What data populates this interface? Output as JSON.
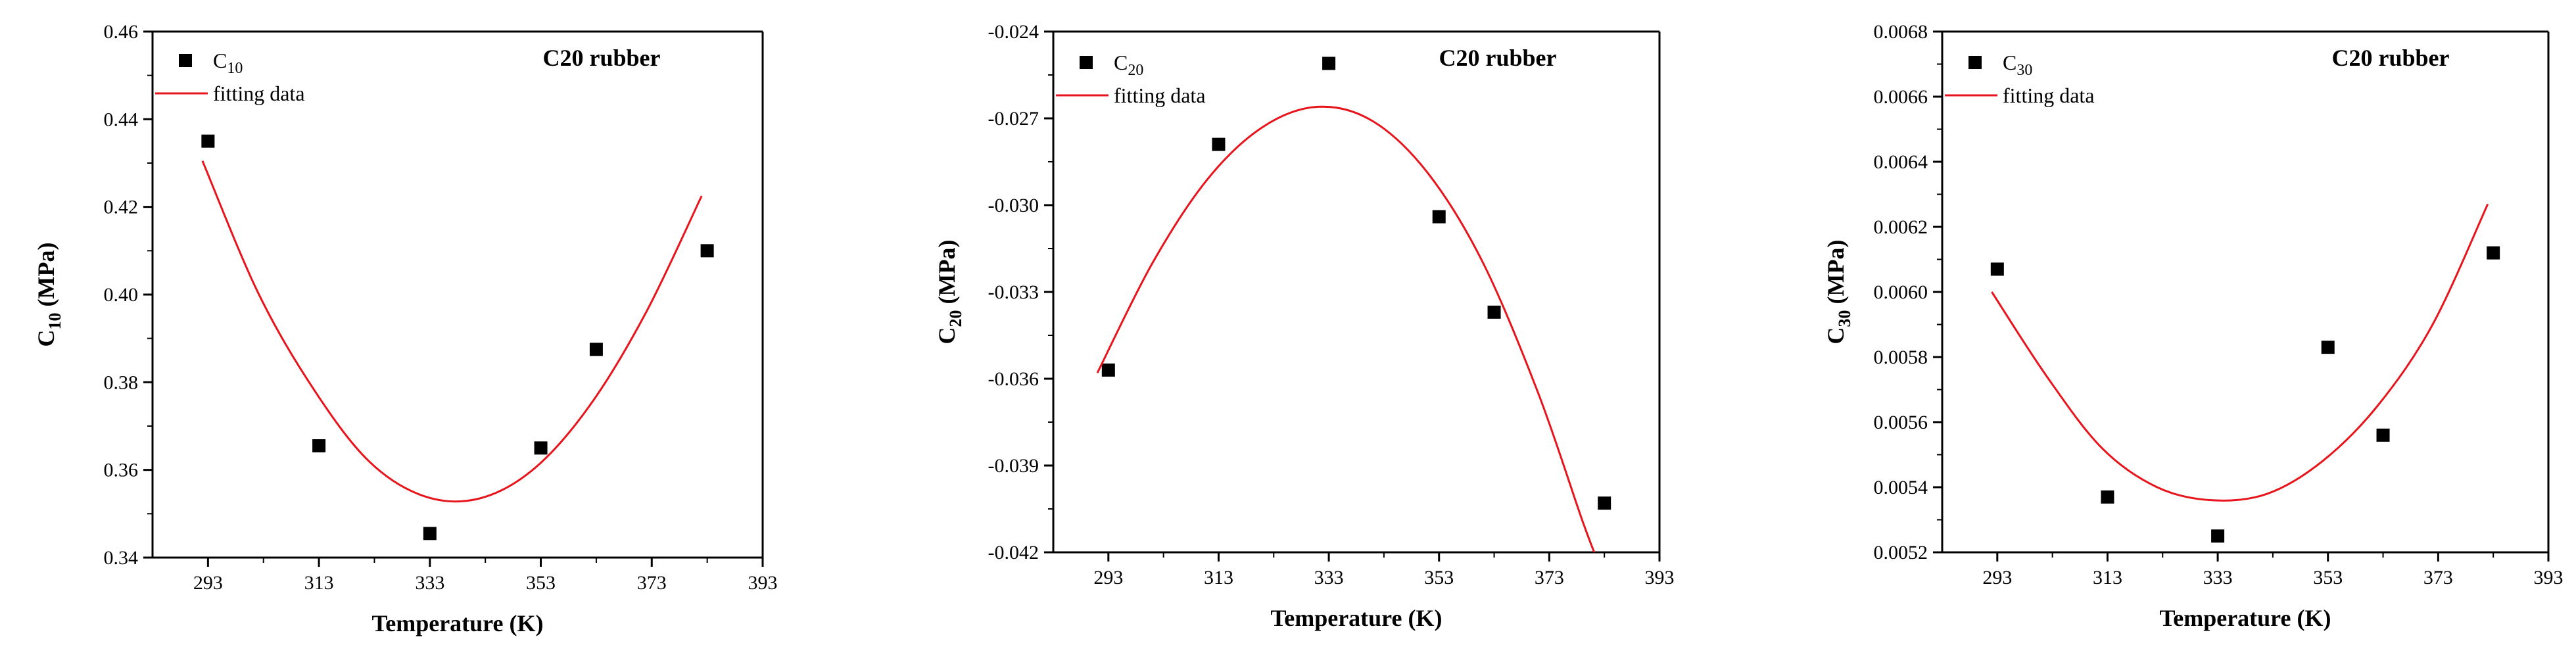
{
  "chart_data": [
    {
      "type": "scatter",
      "title": "C20 rubber",
      "xlabel": "Temperature (K)",
      "ylabel": {
        "main": "C",
        "sub": "10",
        "unit": " (MPa)"
      },
      "xticks": [
        293,
        313,
        333,
        353,
        373,
        393
      ],
      "yticks": [
        "0.34",
        "0.36",
        "0.38",
        "0.40",
        "0.42",
        "0.44",
        "0.46"
      ],
      "xlim": [
        283,
        393
      ],
      "ylim": [
        0.34,
        0.46
      ],
      "legend": [
        {
          "kind": "marker",
          "main": "C",
          "sub": "10"
        },
        {
          "kind": "line",
          "label": "fitting data"
        }
      ],
      "series": [
        {
          "name": "C10",
          "marker": "square",
          "color": "#000000",
          "x": [
            293,
            313,
            333,
            353,
            363,
            383
          ],
          "y": [
            0.435,
            0.3655,
            0.3455,
            0.365,
            0.3875,
            0.41
          ]
        },
        {
          "name": "fitting data",
          "type": "line",
          "color": "#e8141c",
          "x": [
            292,
            302,
            312,
            322,
            332,
            342,
            352,
            362,
            372,
            382
          ],
          "y": [
            0.4305,
            0.4005,
            0.3785,
            0.362,
            0.354,
            0.3535,
            0.3605,
            0.375,
            0.396,
            0.4225
          ]
        }
      ]
    },
    {
      "type": "scatter",
      "title": "C20 rubber",
      "xlabel": "Temperature (K)",
      "ylabel": {
        "main": "C",
        "sub": "20",
        "unit": " (MPa)"
      },
      "xticks": [
        293,
        313,
        333,
        353,
        373,
        393
      ],
      "yticks": [
        "-0.042",
        "-0.039",
        "-0.036",
        "-0.033",
        "-0.030",
        "-0.027",
        "-0.024"
      ],
      "xlim": [
        283,
        393
      ],
      "ylim": [
        -0.042,
        -0.024
      ],
      "legend": [
        {
          "kind": "marker",
          "main": "C",
          "sub": "20"
        },
        {
          "kind": "line",
          "label": "fitting data"
        }
      ],
      "series": [
        {
          "name": "C20",
          "marker": "square",
          "color": "#000000",
          "x": [
            293,
            313,
            333,
            353,
            363,
            383
          ],
          "y": [
            -0.0357,
            -0.0279,
            -0.0251,
            -0.0304,
            -0.0337,
            -0.0403
          ]
        },
        {
          "name": "fitting data",
          "type": "line",
          "color": "#e8141c",
          "x": [
            291,
            301,
            311,
            321,
            331,
            341,
            351,
            361,
            371,
            379,
            382
          ],
          "y": [
            -0.0358,
            -0.032,
            -0.0291,
            -0.0273,
            -0.0266,
            -0.0271,
            -0.0289,
            -0.032,
            -0.0365,
            -0.0409,
            -0.0424
          ]
        }
      ]
    },
    {
      "type": "scatter",
      "title": "C20 rubber",
      "xlabel": "Temperature (K)",
      "ylabel": {
        "main": "C",
        "sub": "30",
        "unit": " (MPa)"
      },
      "xticks": [
        293,
        313,
        333,
        353,
        373,
        393
      ],
      "yticks": [
        "0.0052",
        "0.0054",
        "0.0056",
        "0.0058",
        "0.0060",
        "0.0062",
        "0.0064",
        "0.0066",
        "0.0068"
      ],
      "xlim": [
        283,
        393
      ],
      "ylim": [
        0.0052,
        0.0068
      ],
      "legend": [
        {
          "kind": "marker",
          "main": "C",
          "sub": "30"
        },
        {
          "kind": "line",
          "label": "fitting data"
        }
      ],
      "series": [
        {
          "name": "C30",
          "marker": "square",
          "color": "#000000",
          "x": [
            293,
            313,
            333,
            353,
            363,
            383
          ],
          "y": [
            0.00607,
            0.00537,
            0.00525,
            0.00583,
            0.00556,
            0.00612
          ]
        },
        {
          "name": "fitting data",
          "type": "line",
          "color": "#e8141c",
          "x": [
            292,
            302,
            312,
            322,
            332,
            342,
            352,
            362,
            372,
            382
          ],
          "y": [
            0.006,
            0.00574,
            0.00552,
            0.0054,
            0.00536,
            0.00538,
            0.00548,
            0.00565,
            0.0059,
            0.00627
          ]
        }
      ]
    }
  ]
}
